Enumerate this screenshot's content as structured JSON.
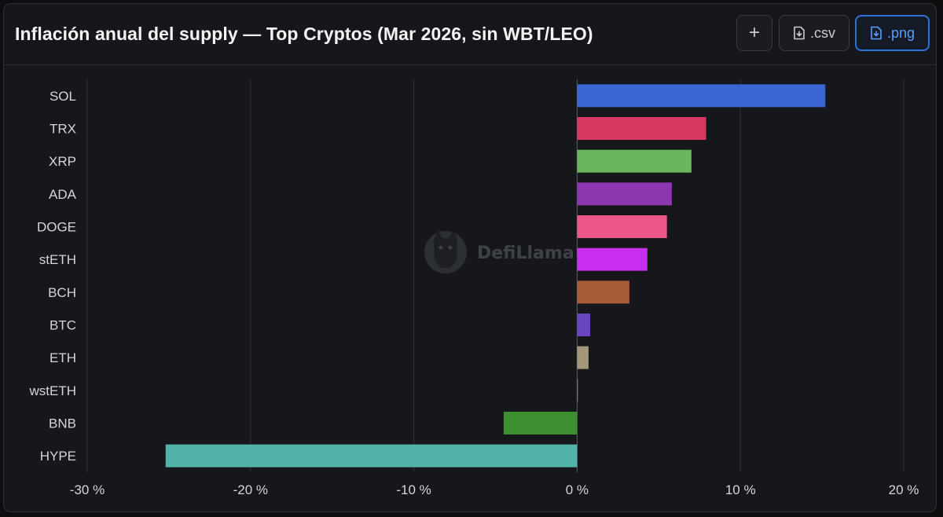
{
  "header": {
    "title": "Inflación anual del supply — Top Cryptos (Mar 2026, sin WBT/LEO)",
    "add_label": "+",
    "csv_label": ".csv",
    "png_label": ".png"
  },
  "watermark": {
    "text": "DefiLlama"
  },
  "colors": {
    "background": "#16171a",
    "grid": "#2f3238",
    "active_button": "#2f6fd6"
  },
  "chart_data": {
    "type": "bar",
    "orientation": "horizontal",
    "title": "Inflación anual del supply — Top Cryptos (Mar 2026, sin WBT/LEO)",
    "xlabel": "",
    "ylabel": "",
    "xlim": [
      -30,
      20
    ],
    "x_ticks": [
      -30,
      -20,
      -10,
      0,
      10,
      20
    ],
    "x_tick_labels": [
      "-30 %",
      "-20 %",
      "-10 %",
      "0 %",
      "10 %",
      "20 %"
    ],
    "grid": "vertical",
    "legend": "none",
    "categories": [
      "SOL",
      "TRX",
      "XRP",
      "ADA",
      "DOGE",
      "stETH",
      "BCH",
      "BTC",
      "ETH",
      "wstETH",
      "BNB",
      "HYPE"
    ],
    "values": [
      15.2,
      7.9,
      7.0,
      5.8,
      5.5,
      4.3,
      3.2,
      0.8,
      0.7,
      0.0,
      -4.5,
      -25.2
    ],
    "colors": [
      "#3a67d4",
      "#d8385f",
      "#6ab55f",
      "#8e35b0",
      "#ec5688",
      "#c82ef0",
      "#a85c3a",
      "#6a45c2",
      "#a49679",
      "#7d7d7d",
      "#3e8f2f",
      "#52b3aa"
    ]
  }
}
